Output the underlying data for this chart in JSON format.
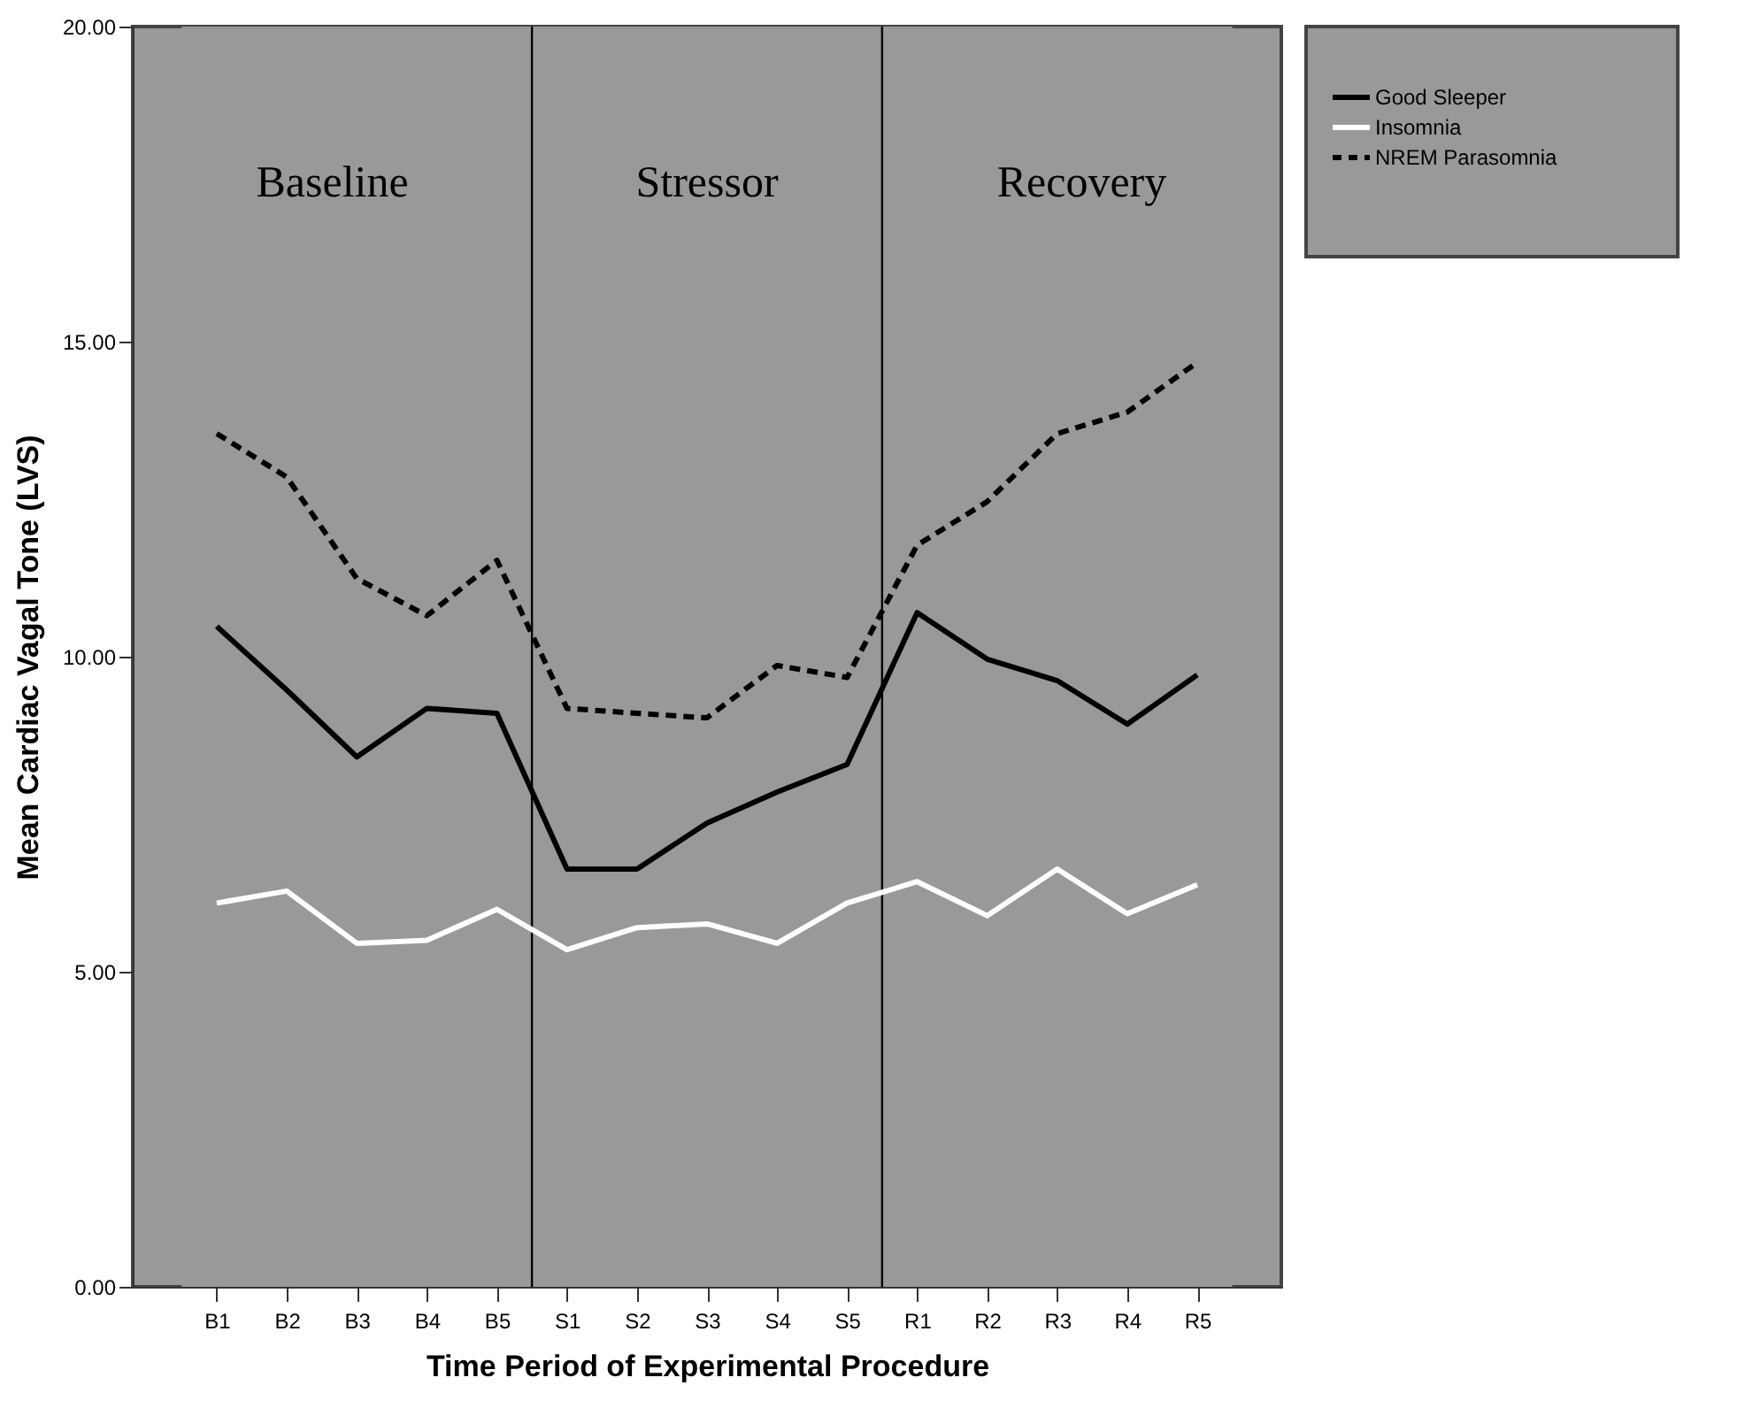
{
  "chart_data": {
    "type": "line",
    "xlabel": "Time Period of Experimental Procedure",
    "ylabel": "Mean Cardiac Vagal Tone (LVS)",
    "categories": [
      "B1",
      "B2",
      "B3",
      "B4",
      "B5",
      "S1",
      "S2",
      "S3",
      "S4",
      "S5",
      "R1",
      "R2",
      "R3",
      "R4",
      "R5"
    ],
    "ylim": [
      0,
      20
    ],
    "yticks": [
      {
        "value": 0,
        "label": "0.00"
      },
      {
        "value": 5,
        "label": "5.00"
      },
      {
        "value": 10,
        "label": "10.00"
      },
      {
        "value": 15,
        "label": "15.00"
      },
      {
        "value": 20,
        "label": "20.00"
      }
    ],
    "series": [
      {
        "name": "Good Sleeper",
        "color": "#000000",
        "line_style": "solid",
        "values": [
          10.48,
          9.47,
          8.41,
          9.18,
          9.1,
          6.63,
          6.63,
          7.36,
          7.85,
          8.29,
          10.7,
          9.96,
          9.62,
          8.93,
          9.71
        ]
      },
      {
        "name": "Insomnia",
        "color": "#ffffff",
        "line_style": "solid",
        "values": [
          6.09,
          6.28,
          5.45,
          5.5,
          5.99,
          5.35,
          5.7,
          5.76,
          5.45,
          6.09,
          6.43,
          5.89,
          6.63,
          5.92,
          6.38
        ]
      },
      {
        "name": "NREM Parasomnia",
        "color": "#000000",
        "line_style": "dashed",
        "values": [
          13.54,
          12.85,
          11.24,
          10.65,
          11.53,
          9.18,
          9.1,
          9.03,
          9.86,
          9.67,
          11.77,
          12.46,
          13.54,
          13.88,
          14.67
        ]
      }
    ],
    "bands": [
      {
        "axis": "x",
        "from": "B1",
        "to": "B5",
        "label": "Baseline",
        "color": "#999999"
      },
      {
        "axis": "x",
        "from": "S1",
        "to": "S5",
        "label": "Stressor",
        "color": "#999999"
      },
      {
        "axis": "x",
        "from": "R1",
        "to": "R5",
        "label": "Recovery",
        "color": "#999999"
      }
    ],
    "legend": "top right",
    "grid": false,
    "marker": "none"
  }
}
